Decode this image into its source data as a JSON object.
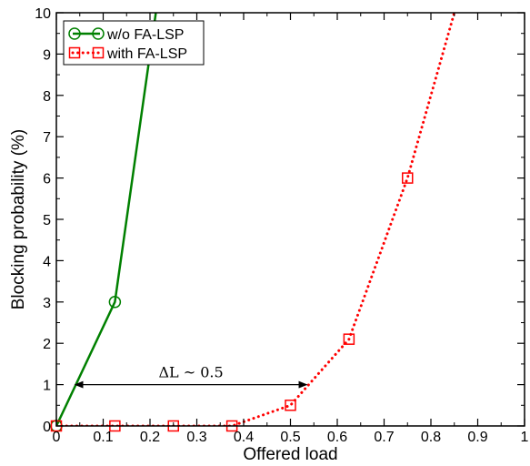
{
  "chart_data": {
    "type": "line",
    "title": "",
    "xlabel": "Offered load",
    "ylabel": "Blocking probability (%)",
    "xlim": [
      0,
      1
    ],
    "ylim": [
      0,
      10
    ],
    "xticks": [
      0,
      0.1,
      0.2,
      0.3,
      0.4,
      0.5,
      0.6,
      0.7,
      0.8,
      0.9,
      1
    ],
    "xtick_labels": [
      "0",
      "0.1",
      "0.2",
      "0.3",
      "0.4",
      "0.5",
      "0.6",
      "0.7",
      "0.8",
      "0.9",
      "1"
    ],
    "yticks": [
      0,
      1,
      2,
      3,
      4,
      5,
      6,
      7,
      8,
      9,
      10
    ],
    "ytick_labels": [
      "0",
      "1",
      "2",
      "3",
      "4",
      "5",
      "6",
      "7",
      "8",
      "9",
      "10"
    ],
    "grid": false,
    "legend_position": "top-left",
    "series": [
      {
        "name": "w/o FA-LSP",
        "color": "#008000",
        "line_style": "solid",
        "marker": "circle",
        "x": [
          0,
          0.125,
          0.25
        ],
        "y": [
          0,
          3,
          13
        ],
        "marker_x": [
          0,
          0.125
        ],
        "marker_y": [
          0,
          3
        ]
      },
      {
        "name": "with FA-LSP",
        "color": "#ff0000",
        "line_style": "dotted",
        "marker": "square",
        "x": [
          0,
          0.125,
          0.25,
          0.375,
          0.5,
          0.625,
          0.75,
          0.875
        ],
        "y": [
          0,
          0,
          0,
          0,
          0.5,
          2.1,
          6.0,
          11.0
        ],
        "marker_x": [
          0,
          0.125,
          0.25,
          0.375,
          0.5,
          0.625,
          0.75
        ],
        "marker_y": [
          0,
          0,
          0,
          0,
          0.5,
          2.1,
          6.0
        ]
      }
    ],
    "annotations": [
      {
        "text": "ΔL ~ 0.5",
        "type": "double-arrow",
        "x_start": 0.04,
        "x_end": 0.535,
        "y": 1.0
      }
    ]
  }
}
